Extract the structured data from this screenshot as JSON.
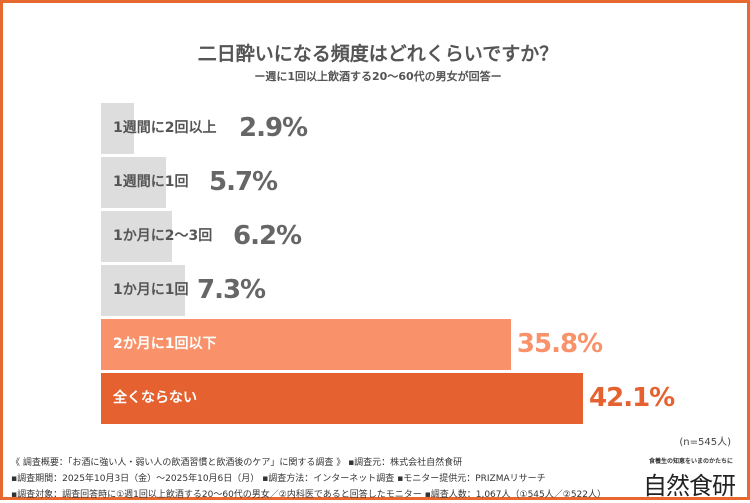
{
  "chart_data": {
    "type": "bar",
    "orientation": "horizontal",
    "title": "二日酔いになる頻度はどれくらいですか？",
    "subtitle": "ー週に1回以上飲酒する20〜60代の男女が回答ー",
    "categories": [
      "1週間に2回以上",
      "1週間に1回",
      "1か月に2〜3回",
      "1か月に1回",
      "2か月に1回以下",
      "全くならない"
    ],
    "values": [
      2.9,
      5.7,
      6.2,
      7.3,
      35.8,
      42.1
    ],
    "unit": "%",
    "colors": [
      "#dddddd",
      "#dddddd",
      "#dddddd",
      "#dddddd",
      "#f9926b",
      "#e56230"
    ],
    "value_label_colors": [
      "#666666",
      "#666666",
      "#666666",
      "#666666",
      "#f9926b",
      "#e56230"
    ],
    "category_label_colors": [
      "#555555",
      "#555555",
      "#555555",
      "#555555",
      "#ffffff",
      "#ffffff"
    ],
    "grid": false,
    "sample_note": "(n=545人)"
  },
  "footer": {
    "lines": [
      "《 調査概要：「お酒に強い人・弱い人の飲酒習慣と飲酒後のケア」に関する調査 》 ▪調査元：株式会社自然食研",
      "▪調査期間：2025年10月3日（金）〜2025年10月6日（月） ▪調査方法：インターネット調査 ▪モニター提供元：PRIZMAリサーチ",
      "▪調査対象：調査回答時に①週1回以上飲酒する20〜60代の男女／②内科医であると回答したモニター ▪調査人数：1,067人（①545人／②522人）"
    ],
    "logo_tagline": "食養生の知恵をいまのかたちに",
    "logo": "自然食研"
  },
  "accent": "#e8692f"
}
